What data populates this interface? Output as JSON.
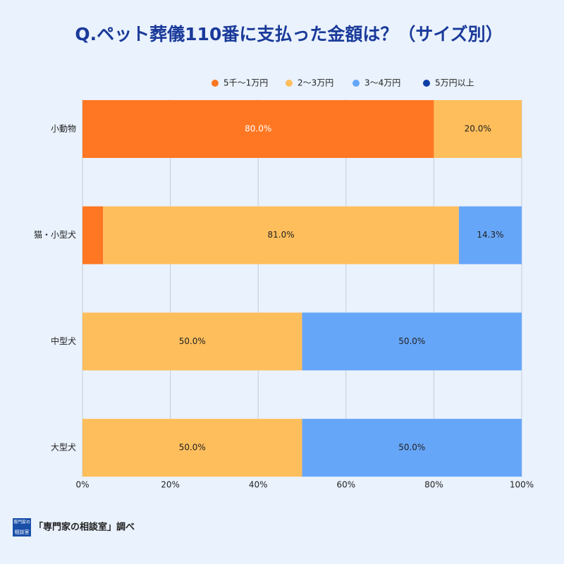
{
  "chart_data": {
    "type": "stacked_barh",
    "title": "Q.ペット葬儀110番に支払った金額は？（サイズ別）",
    "categories": [
      "小動物",
      "猫・小型犬",
      "中型犬",
      "大型犬"
    ],
    "series": [
      {
        "name": "5千〜1万円",
        "color": "#ff7722",
        "values": [
          80,
          4.7,
          0,
          0
        ],
        "value_labels": [
          "80.0%",
          null,
          null,
          null
        ]
      },
      {
        "name": "2〜3万円",
        "color": "#ffbe5c",
        "values": [
          20,
          81,
          50,
          50
        ],
        "value_labels": [
          "20.0%",
          "81.0%",
          "50.0%",
          "50.0%"
        ]
      },
      {
        "name": "3〜4万円",
        "color": "#66a6f8",
        "values": [
          0,
          14.3,
          50,
          50
        ],
        "value_labels": [
          null,
          "14.3%",
          "50.0%",
          "50.0%"
        ]
      },
      {
        "name": "5万円以上",
        "color": "#0d3fa8",
        "values": [
          0,
          0,
          0,
          0
        ],
        "value_labels": [
          null,
          null,
          null,
          null
        ]
      }
    ],
    "xlim": [
      0,
      100
    ],
    "xticks": [
      {
        "value": 0,
        "label": "0%"
      },
      {
        "value": 20,
        "label": "20%"
      },
      {
        "value": 40,
        "label": "40%"
      },
      {
        "value": 60,
        "label": "60%"
      },
      {
        "value": 80,
        "label": "80%"
      },
      {
        "value": 100,
        "label": "100%"
      }
    ],
    "grid": true,
    "legend": "top",
    "logo_text": [
      "専門家の",
      "相談室"
    ],
    "source": "「専門家の相談室」調べ"
  }
}
